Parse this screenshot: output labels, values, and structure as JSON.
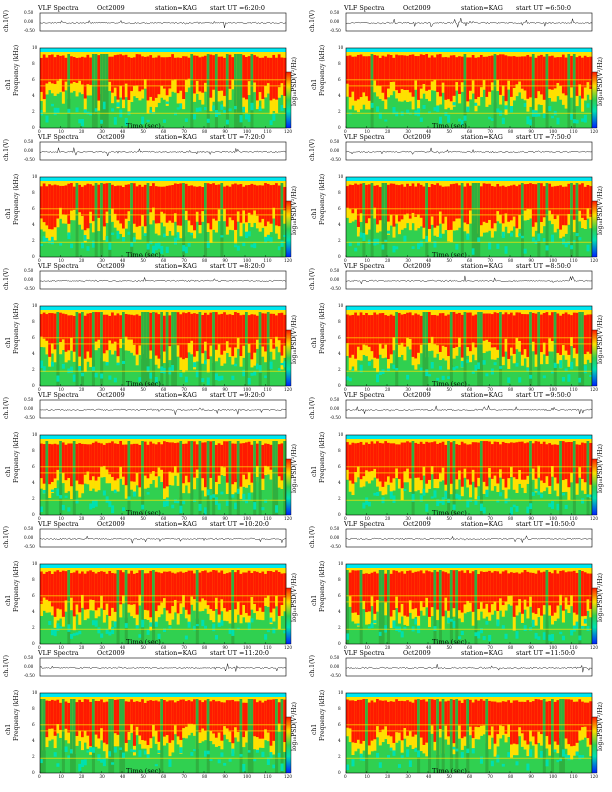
{
  "colors": {
    "spec_low": "#0020ff",
    "spec_mid_low": "#00e0b0",
    "spec_mid": "#30d050",
    "spec_high": "#ffe000",
    "spec_peak": "#ff1a00",
    "band_top": "#00e8f0",
    "trace": "#000000"
  },
  "common": {
    "title": "VLF Spectra",
    "station": "station=KAG",
    "xlabel": "Time (sec)",
    "ch_label": "ch.1(V)",
    "freq_label": "Frequency (kHz)",
    "channel_label": "ch1",
    "colorbar_label": "log₁₀PSD(V²/Hz)",
    "x_ticks": [
      "0",
      "10",
      "20",
      "30",
      "40",
      "50",
      "60",
      "70",
      "80",
      "90",
      "100",
      "110",
      "120"
    ],
    "y_ticks_freq": [
      "0",
      "2",
      "4",
      "6",
      "8",
      "10"
    ],
    "y_ticks_ch": [
      "-0.50",
      "0.00",
      "0.50"
    ]
  },
  "chart_data": [
    {
      "type": "heatmap",
      "date": "Oct2009",
      "start_ut": "start UT =6:20:0",
      "xlim": [
        0,
        120
      ],
      "ylim": [
        0,
        10
      ]
    },
    {
      "type": "heatmap",
      "date": "Oct2009",
      "start_ut": "start UT =6:50:0",
      "xlim": [
        0,
        120
      ],
      "ylim": [
        0,
        10
      ]
    },
    {
      "type": "heatmap",
      "date": "Oct2009",
      "start_ut": "start UT =7:20:0",
      "xlim": [
        0,
        120
      ],
      "ylim": [
        0,
        10
      ]
    },
    {
      "type": "heatmap",
      "date": "Oct2009",
      "start_ut": "start UT =7:50:0",
      "xlim": [
        0,
        120
      ],
      "ylim": [
        0,
        10
      ]
    },
    {
      "type": "heatmap",
      "date": "Oct2009",
      "start_ut": "start UT =8:20:0",
      "xlim": [
        0,
        120
      ],
      "ylim": [
        0,
        10
      ]
    },
    {
      "type": "heatmap",
      "date": "Oct2009",
      "start_ut": "start UT =8:50:0",
      "xlim": [
        0,
        120
      ],
      "ylim": [
        0,
        10
      ]
    },
    {
      "type": "heatmap",
      "date": "Oct2009",
      "start_ut": "start UT =9:20:0",
      "xlim": [
        0,
        120
      ],
      "ylim": [
        0,
        10
      ]
    },
    {
      "type": "heatmap",
      "date": "Oct2009",
      "start_ut": "start UT =9:50:0",
      "xlim": [
        0,
        120
      ],
      "ylim": [
        0,
        10
      ]
    },
    {
      "type": "heatmap",
      "date": "Oct2009",
      "start_ut": "start UT =10:20:0",
      "xlim": [
        0,
        120
      ],
      "ylim": [
        0,
        10
      ]
    },
    {
      "type": "heatmap",
      "date": "Oct2009",
      "start_ut": "start UT =10:50:0",
      "xlim": [
        0,
        120
      ],
      "ylim": [
        0,
        10
      ]
    },
    {
      "type": "heatmap",
      "date": "Oct2009",
      "start_ut": "start UT =11:20:0",
      "xlim": [
        0,
        120
      ],
      "ylim": [
        0,
        10
      ]
    },
    {
      "type": "heatmap",
      "date": "Oct2009",
      "start_ut": "start UT =11:50:0",
      "xlim": [
        0,
        120
      ],
      "ylim": [
        0,
        10
      ]
    }
  ]
}
